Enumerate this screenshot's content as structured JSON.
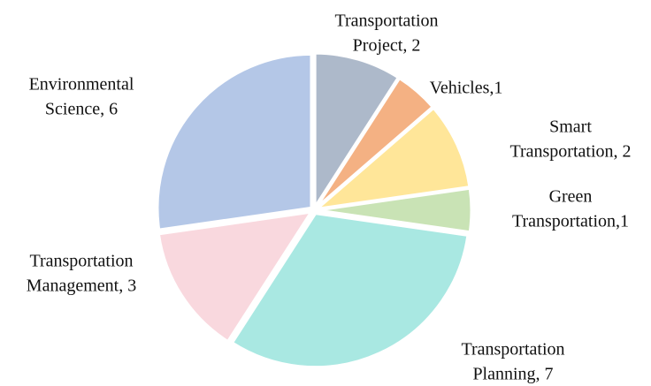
{
  "chart_data": {
    "type": "pie",
    "labels": [
      [
        "Transportation",
        "Project, 2"
      ],
      [
        "Vehicles,1"
      ],
      [
        "Smart",
        "Transportation, 2"
      ],
      [
        "Green",
        "Transportation,1"
      ],
      [
        "Transportation",
        "Planning, 7"
      ],
      [
        "Transportation",
        "Management, 3"
      ],
      [
        "Environmental",
        "Science, 6"
      ]
    ],
    "values": [
      2,
      1,
      2,
      1,
      7,
      3,
      6
    ],
    "colors": [
      "#adb9ca",
      "#f4b183",
      "#ffe699",
      "#c9e3b5",
      "#a9e8e2",
      "#f9d8de",
      "#b4c7e7"
    ]
  }
}
